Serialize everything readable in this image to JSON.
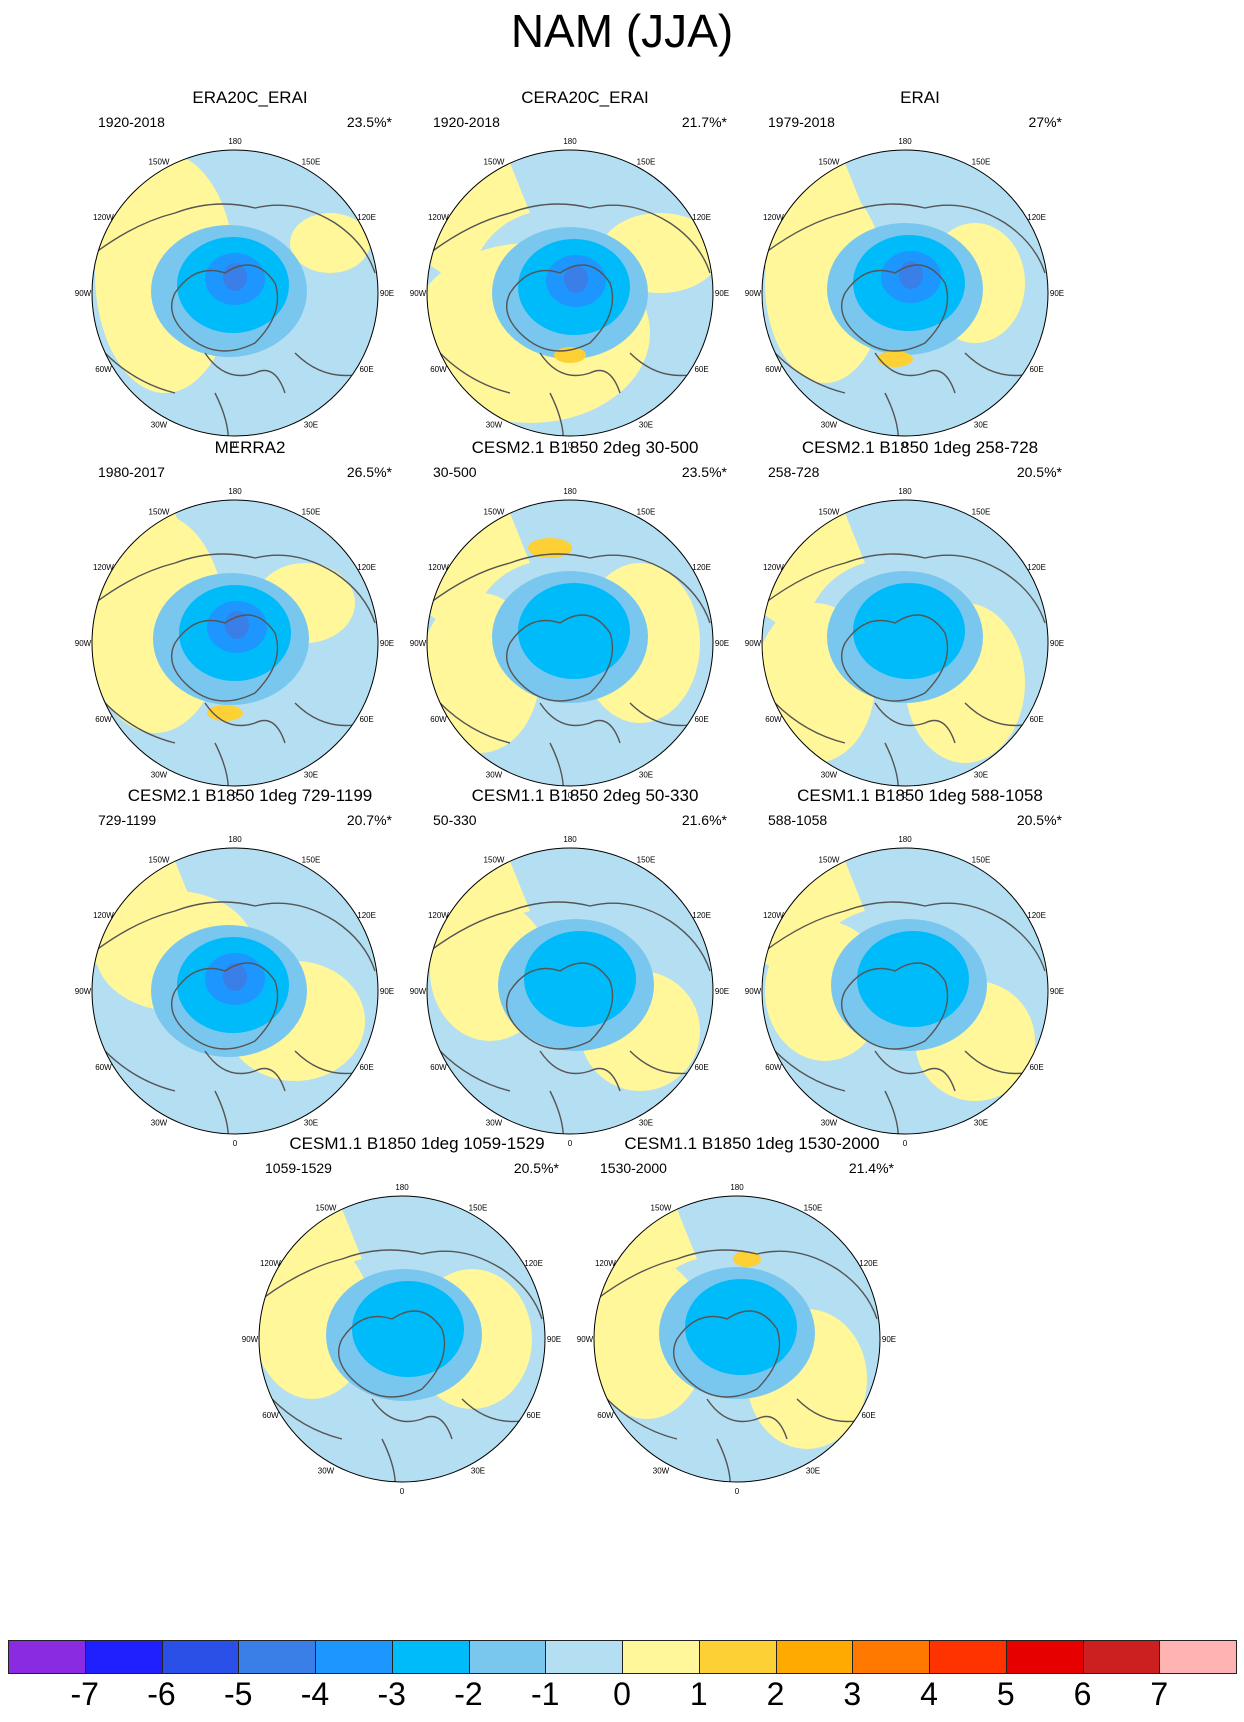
{
  "title": "NAM (JJA)",
  "colors": {
    "ocean_pos": "#fff799",
    "neg1": "#b4def1",
    "neg2": "#79c7ee",
    "neg3": "#00bbf9",
    "neg4": "#1e96ff",
    "pos1": "#fdd035",
    "coast": "#555555"
  },
  "polar_labels": {
    "lon": [
      "180",
      "150E",
      "120E",
      "90E",
      "60E",
      "30E",
      "0",
      "30W",
      "60W",
      "90W",
      "120W",
      "150W"
    ]
  },
  "chart_data": {
    "type": "polar-contour-map",
    "variable": "NAM regression (JJA)",
    "colorbar": {
      "levels": [
        "-7",
        "-6",
        "-5",
        "-4",
        "-3",
        "-2",
        "-1",
        "0",
        "1",
        "2",
        "3",
        "4",
        "5",
        "6",
        "7"
      ],
      "colors": [
        "#8a2be2",
        "#2020ff",
        "#2a50e8",
        "#3a7ee8",
        "#1e96ff",
        "#00bbf9",
        "#79c7ee",
        "#b4def1",
        "#fff799",
        "#fdd035",
        "#ffaa00",
        "#ff7800",
        "#ff3300",
        "#e60000",
        "#cc1f1f",
        "#ffb3b3"
      ]
    },
    "panels": [
      {
        "title": "ERA20C_ERAI",
        "period": "1920-2018",
        "pct": "23.5%*"
      },
      {
        "title": "CERA20C_ERAI",
        "period": "1920-2018",
        "pct": "21.7%*"
      },
      {
        "title": "ERAI",
        "period": "1979-2018",
        "pct": "27%*"
      },
      {
        "title": "MERRA2",
        "period": "1980-2017",
        "pct": "26.5%*"
      },
      {
        "title": "CESM2.1 B1850 2deg 30-500",
        "period": "30-500",
        "pct": "23.5%*"
      },
      {
        "title": "CESM2.1 B1850 1deg 258-728",
        "period": "258-728",
        "pct": "20.5%*"
      },
      {
        "title": "CESM2.1 B1850 1deg 729-1199",
        "period": "729-1199",
        "pct": "20.7%*"
      },
      {
        "title": "CESM1.1 B1850 2deg 50-330",
        "period": "50-330",
        "pct": "21.6%*"
      },
      {
        "title": "CESM1.1 B1850 1deg 588-1058",
        "period": "588-1058",
        "pct": "20.5%*"
      },
      {
        "title": "CESM1.1 B1850 1deg 1059-1529",
        "period": "1059-1529",
        "pct": "20.5%*"
      },
      {
        "title": "CESM1.1 B1850 1deg 1530-2000",
        "period": "1530-2000",
        "pct": "21.4%*"
      }
    ]
  }
}
